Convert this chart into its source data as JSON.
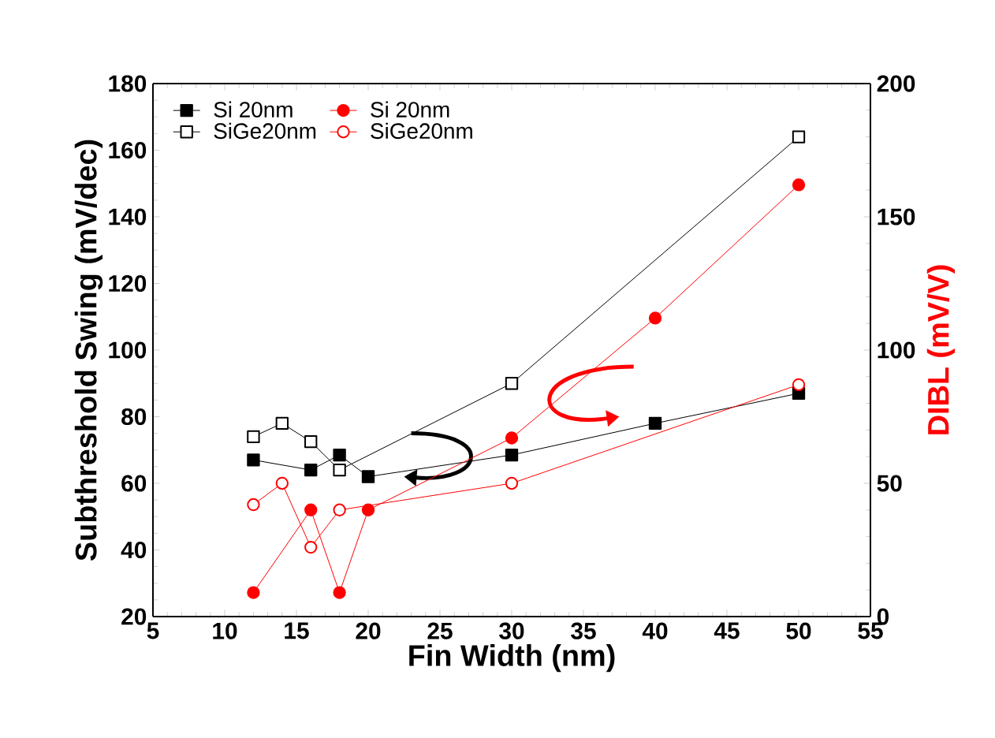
{
  "chart_data": {
    "type": "line",
    "xlabel": "Fin Width (nm)",
    "ylabel": "Subthreshold Swing (mV/dec)",
    "y2label": "DIBL (mV/V)",
    "xlim": [
      5,
      55
    ],
    "xticks": [
      5,
      10,
      15,
      20,
      25,
      30,
      35,
      40,
      45,
      50,
      55
    ],
    "ylim": [
      20,
      180
    ],
    "yticks": [
      20,
      40,
      60,
      80,
      100,
      120,
      140,
      160,
      180
    ],
    "y2lim": [
      0,
      200
    ],
    "y2ticks": [
      0,
      50,
      100,
      150,
      200
    ],
    "legend": "top left",
    "grid": false,
    "series": [
      {
        "name": "Si 20nm",
        "color": "#000000",
        "marker": "square",
        "x": [
          12,
          16,
          18,
          20,
          30,
          40,
          50
        ],
        "values": [
          67,
          64,
          68.5,
          62,
          68.5,
          78,
          87
        ]
      },
      {
        "name": "Si 20nm",
        "color": "#ff0000",
        "marker": "circle",
        "axis": "y2",
        "x": [
          12,
          16,
          18,
          20,
          30,
          40,
          50
        ],
        "values": [
          9,
          40,
          9,
          40,
          67,
          112,
          162
        ]
      },
      {
        "name": "SiGe20nm",
        "color": "#000000",
        "marker": "square",
        "x": [
          12,
          14,
          16,
          18,
          30,
          50
        ],
        "values": [
          74,
          78,
          72.5,
          64,
          90,
          164
        ]
      },
      {
        "name": "SiGe20nm",
        "color": "#ff0000",
        "marker": "circle",
        "axis": "y2",
        "x": [
          12,
          14,
          16,
          18,
          30,
          50
        ],
        "values": [
          42,
          50,
          26,
          40,
          50,
          87
        ]
      }
    ]
  }
}
